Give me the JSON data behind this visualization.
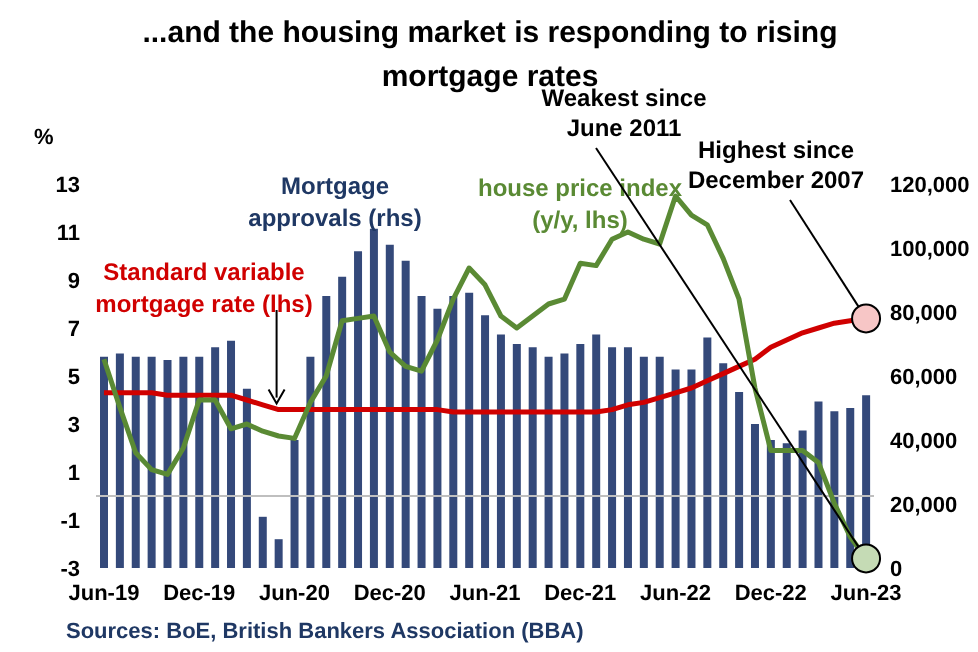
{
  "chart_data": {
    "type": "bar",
    "title": "...and the housing market is responding to rising mortgage rates",
    "ylabel": "%",
    "categories": [
      "Jun-19",
      null,
      null,
      null,
      null,
      null,
      "Dec-19",
      null,
      null,
      null,
      null,
      null,
      "Jun-20",
      null,
      null,
      null,
      null,
      null,
      "Dec-20",
      null,
      null,
      null,
      null,
      null,
      "Jun-21",
      null,
      null,
      null,
      null,
      null,
      "Dec-21",
      null,
      null,
      null,
      null,
      null,
      "Jun-22",
      null,
      null,
      null,
      null,
      null,
      "Dec-22",
      null,
      null,
      null,
      null,
      null,
      "Jun-23"
    ],
    "series": [
      {
        "name": "Mortgage approvals (rhs)",
        "axis": "y2",
        "color": "#34497a",
        "values": [
          66000,
          67000,
          66000,
          66000,
          65000,
          66000,
          66000,
          69000,
          71000,
          56000,
          16000,
          9000,
          40000,
          66000,
          85000,
          91000,
          99000,
          106000,
          101000,
          96000,
          85000,
          81000,
          85000,
          86000,
          79000,
          73000,
          70000,
          69000,
          66000,
          67000,
          70000,
          73000,
          69000,
          69000,
          66000,
          66000,
          62000,
          62000,
          72000,
          64000,
          55000,
          45000,
          40000,
          39000,
          43000,
          52000,
          49000,
          50000,
          54000
        ]
      },
      {
        "name": "Standard variable mortgage rate (lhs)",
        "type": "line",
        "color": "#d00000",
        "values": [
          4.3,
          4.3,
          4.3,
          4.3,
          4.2,
          4.2,
          4.2,
          4.2,
          4.2,
          4.0,
          3.8,
          3.6,
          3.6,
          3.6,
          3.6,
          3.6,
          3.6,
          3.6,
          3.6,
          3.6,
          3.6,
          3.6,
          3.5,
          3.5,
          3.5,
          3.5,
          3.5,
          3.5,
          3.5,
          3.5,
          3.5,
          3.5,
          3.6,
          3.8,
          3.9,
          4.1,
          4.3,
          4.5,
          4.8,
          5.1,
          5.4,
          5.7,
          6.2,
          6.5,
          6.8,
          7.0,
          7.2,
          7.3,
          7.4
        ]
      },
      {
        "name": "house price index (y/y, lhs)",
        "type": "line",
        "color": "#5a8a34",
        "values": [
          5.7,
          3.7,
          1.8,
          1.1,
          0.9,
          2.0,
          4.0,
          4.0,
          2.8,
          3.0,
          2.7,
          2.5,
          2.4,
          3.9,
          5.0,
          7.3,
          7.4,
          7.5,
          6.0,
          5.4,
          5.2,
          6.5,
          8.2,
          9.5,
          8.8,
          7.5,
          7.0,
          7.5,
          8.0,
          8.2,
          9.7,
          9.6,
          10.7,
          11.0,
          10.7,
          10.5,
          12.5,
          11.7,
          11.3,
          9.9,
          8.2,
          4.5,
          1.9,
          1.9,
          1.9,
          1.4,
          -0.3,
          -1.7,
          -2.6
        ]
      }
    ],
    "ylim": [
      -3,
      13
    ],
    "yticks": [
      -3,
      -1,
      1,
      3,
      5,
      7,
      9,
      11,
      13
    ],
    "y2lim": [
      0,
      120000
    ],
    "y2ticks": [
      {
        "value": 0,
        "label": "0"
      },
      {
        "value": 20000,
        "label": "20,000"
      },
      {
        "value": 40000,
        "label": "40,000"
      },
      {
        "value": 60000,
        "label": "60,000"
      },
      {
        "value": 80000,
        "label": "80,000"
      },
      {
        "value": 100000,
        "label": "100,000"
      },
      {
        "value": 120000,
        "label": "120,000"
      }
    ],
    "ref_lines": [
      {
        "axis": "y",
        "value": 0,
        "color": "#bfbfbf"
      }
    ],
    "annotations": [
      {
        "text": "Weakest since June 2011",
        "x": "Jun-23",
        "y": -2.6
      },
      {
        "text": "Highest since December 2007",
        "x": "Jun-23",
        "y": 7.4
      },
      "Sources: BoE, British Bankers Association (BBA)"
    ],
    "grid": false,
    "legend": false
  }
}
